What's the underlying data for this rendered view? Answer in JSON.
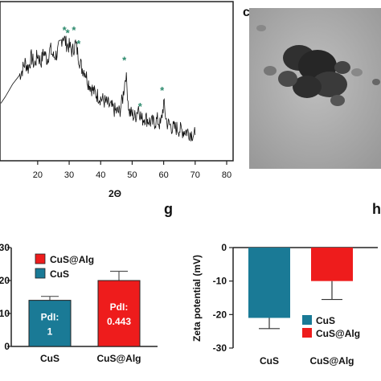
{
  "panel_letters": {
    "c": "c",
    "g": "g",
    "h": "h"
  },
  "chart_data": [
    {
      "type": "line",
      "panel": "xrd",
      "xlabel": "2Θ",
      "ylabel": "",
      "xlim": [
        6,
        80
      ],
      "x_ticks": [
        "20",
        "30",
        "40",
        "50",
        "60",
        "70",
        "80"
      ],
      "series": [
        {
          "values_description_free": true,
          "x": [
            6,
            8,
            10,
            12,
            14,
            15,
            16,
            17,
            18,
            19,
            20,
            21,
            22,
            23,
            24,
            25,
            26,
            27,
            28,
            29,
            30,
            31,
            32,
            33,
            34,
            35,
            36,
            37,
            38,
            39,
            40,
            41,
            42,
            43,
            44,
            45,
            46,
            47,
            48,
            49,
            50,
            51,
            52,
            53,
            54,
            55,
            56,
            57,
            58,
            59,
            60,
            61,
            62,
            63,
            64,
            65,
            66,
            67,
            68,
            69,
            70
          ],
          "y": [
            0.3,
            0.35,
            0.42,
            0.5,
            0.56,
            0.6,
            0.66,
            0.62,
            0.7,
            0.64,
            0.72,
            0.66,
            0.74,
            0.68,
            0.76,
            0.7,
            0.72,
            0.78,
            0.86,
            0.8,
            0.78,
            0.74,
            0.8,
            0.7,
            0.62,
            0.6,
            0.52,
            0.48,
            0.44,
            0.42,
            0.4,
            0.38,
            0.36,
            0.34,
            0.32,
            0.3,
            0.3,
            0.4,
            0.58,
            0.3,
            0.28,
            0.26,
            0.34,
            0.24,
            0.26,
            0.24,
            0.22,
            0.22,
            0.24,
            0.2,
            0.36,
            0.22,
            0.2,
            0.18,
            0.18,
            0.17,
            0.16,
            0.16,
            0.15,
            0.14,
            0.13
          ]
        }
      ],
      "peak_markers_x": [
        28.5,
        29.5,
        31.5,
        33,
        47.5,
        52.5,
        59.5
      ],
      "marker_symbol": "*"
    },
    {
      "type": "bar",
      "panel": "g",
      "categories": [
        "CuS",
        "CuS@Alg"
      ],
      "values": [
        14,
        20
      ],
      "errors": [
        1.2,
        2.8
      ],
      "ylim": [
        0,
        30
      ],
      "y_ticks": [
        "0",
        "10",
        "20",
        "30"
      ],
      "colors": [
        "#1a7a96",
        "#ee1c1c"
      ],
      "bar_labels": [
        "PdI:\n1",
        "PdI:\n0.443"
      ],
      "legend": [
        "CuS@Alg",
        "CuS"
      ],
      "legend_placement": "top-left"
    },
    {
      "type": "bar",
      "panel": "h",
      "categories": [
        "CuS",
        "CuS@Alg"
      ],
      "values": [
        -21,
        -10
      ],
      "errors": [
        3.2,
        5.5
      ],
      "ylim": [
        -30,
        0
      ],
      "y_ticks": [
        "0",
        "-10",
        "-20",
        "-30"
      ],
      "ylabel": "Zeta potential (mV)",
      "colors": [
        "#1a7a96",
        "#ee1c1c"
      ],
      "legend": [
        "CuS",
        "CuS@Alg"
      ],
      "legend_placement": "bottom-right"
    }
  ]
}
